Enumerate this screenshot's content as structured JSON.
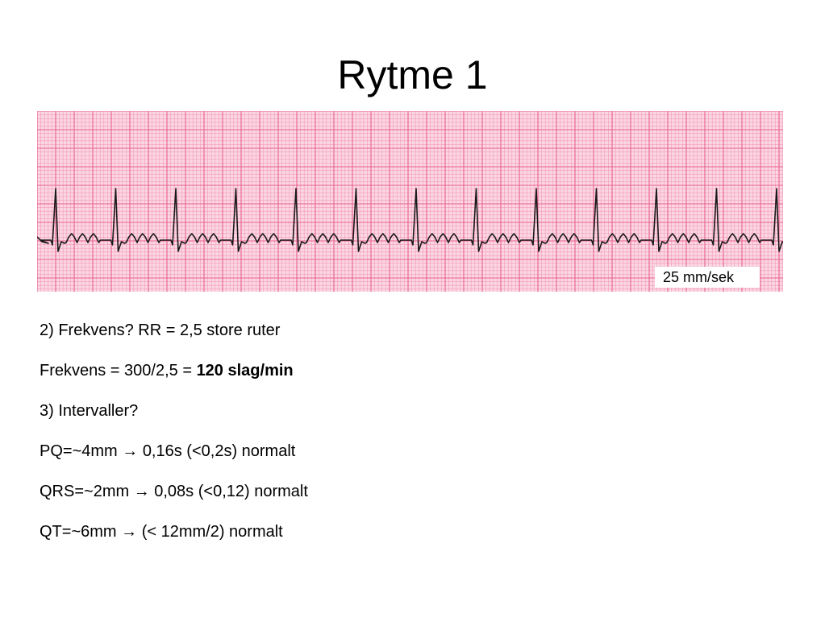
{
  "slide": {
    "title": "Rytme 1"
  },
  "ecg": {
    "speed_label": "25 mm/sek",
    "paper_color": "#fbd7e3",
    "minor_grid_color": "#f39ab8",
    "major_grid_color": "#e8628f",
    "trace_color": "#1a1a1a"
  },
  "notes": [
    {
      "text": "2) Frekvens? RR = 2,5 store ruter"
    },
    {
      "text": "Frekvens = 300/2,5 = ",
      "bold": "120 slag/min"
    },
    {
      "text": "3) Intervaller?"
    },
    {
      "text": "PQ=~4mm → 0,16s (<0,2s) normalt"
    },
    {
      "text": "QRS=~2mm → 0,08s (<0,12) normalt"
    },
    {
      "text": "QT=~6mm → (< 12mm/2) normalt"
    }
  ]
}
